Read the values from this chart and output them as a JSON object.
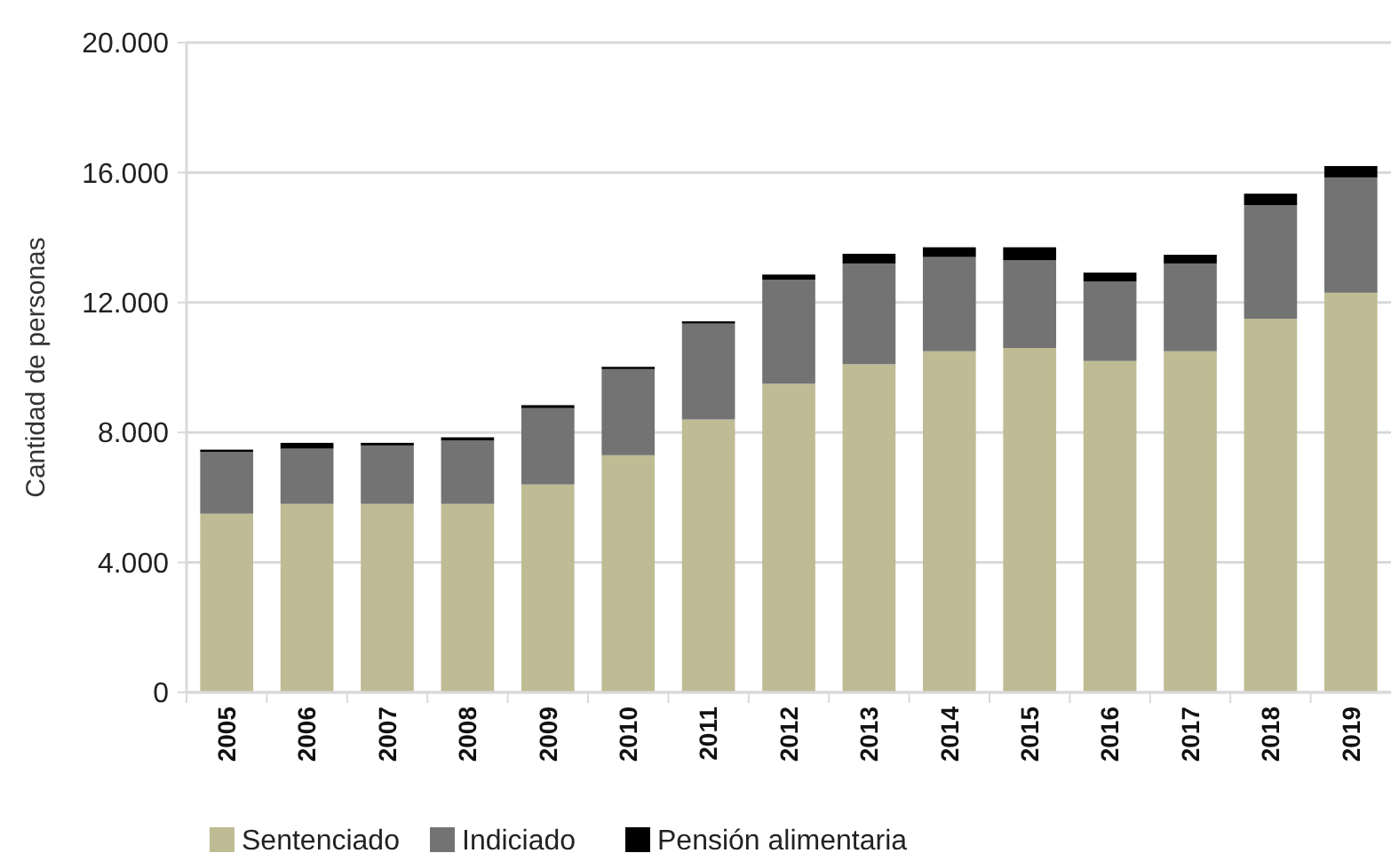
{
  "chart_data": {
    "type": "bar",
    "stacked": true,
    "ylabel": "Cantidad de personas",
    "categories": [
      "2005",
      "2006",
      "2007",
      "2008",
      "2009",
      "2010",
      "2011",
      "2012",
      "2013",
      "2014",
      "2015",
      "2016",
      "2017",
      "2018",
      "2019"
    ],
    "series": [
      {
        "name": "Sentenciado",
        "color": "#bfbb94",
        "values": [
          5500,
          5800,
          5800,
          5800,
          6400,
          7300,
          8400,
          9500,
          10100,
          10500,
          10600,
          10200,
          10500,
          11500,
          12300
        ]
      },
      {
        "name": "Indiciado",
        "color": "#737373",
        "values": [
          1900,
          1700,
          1800,
          1950,
          2350,
          2650,
          2950,
          3200,
          3100,
          2900,
          2700,
          2450,
          2700,
          3500,
          3550
        ]
      },
      {
        "name": "Pensión alimentaria",
        "color": "#000000",
        "values": [
          70,
          180,
          80,
          100,
          90,
          70,
          70,
          160,
          300,
          300,
          400,
          270,
          270,
          350,
          350
        ]
      }
    ],
    "ylim": [
      0,
      20000
    ],
    "yticks": [
      {
        "value": 0,
        "label": "0"
      },
      {
        "value": 4000,
        "label": "4.000"
      },
      {
        "value": 8000,
        "label": "8.000"
      },
      {
        "value": 12000,
        "label": "12.000"
      },
      {
        "value": 16000,
        "label": "16.000"
      },
      {
        "value": 20000,
        "label": "20.000"
      }
    ],
    "grid": "y",
    "legend": "bottom"
  }
}
